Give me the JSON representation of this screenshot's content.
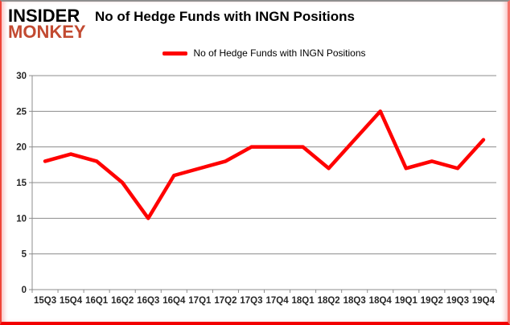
{
  "header": {
    "logo_line1": "INSIDER",
    "logo_line2": "MONKEY",
    "title": "No of Hedge Funds with INGN Positions"
  },
  "legend": {
    "label": "No of Hedge Funds with INGN Positions"
  },
  "chart_data": {
    "type": "line",
    "title": "No of Hedge Funds with INGN Positions",
    "series": [
      {
        "name": "No of Hedge Funds with INGN Positions",
        "values": [
          18,
          19,
          18,
          15,
          10,
          16,
          17,
          18,
          20,
          20,
          20,
          17,
          21,
          25,
          17,
          18,
          17,
          21
        ]
      }
    ],
    "categories": [
      "15Q3",
      "15Q4",
      "16Q1",
      "16Q2",
      "16Q3",
      "16Q4",
      "17Q1",
      "17Q2",
      "17Q3",
      "17Q4",
      "18Q1",
      "18Q2",
      "18Q3",
      "18Q4",
      "19Q1",
      "19Q2",
      "19Q3",
      "19Q4"
    ],
    "xlabel": "",
    "ylabel": "",
    "ylim": [
      0,
      30
    ],
    "yticks": [
      0,
      5,
      10,
      15,
      20,
      25,
      30
    ],
    "grid": true,
    "legend_position": "top",
    "colors": {
      "line": "#ff0000",
      "grid": "#8c8c8c",
      "axis": "#8c8c8c",
      "axis_text": "#262626",
      "logo_insider": "#000000",
      "logo_monkey": "#c24a31",
      "frame_red": "#f20000"
    }
  }
}
